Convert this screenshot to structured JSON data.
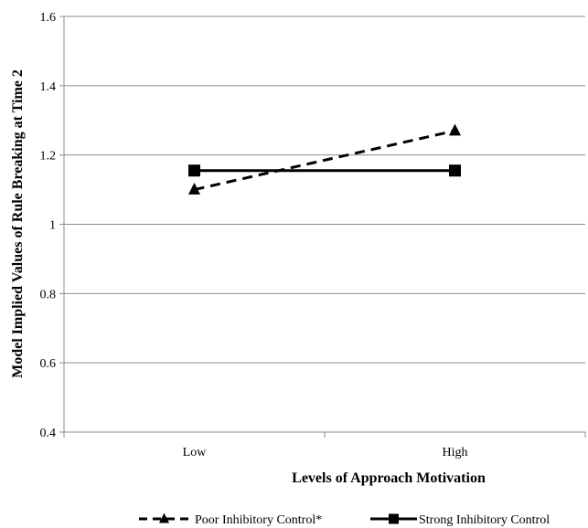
{
  "chart_data": {
    "type": "line",
    "title": "",
    "xlabel": "Levels of Approach Motivation",
    "ylabel": "Model Implied Values of Rule Breaking at Time 2",
    "categories": [
      "Low",
      "High"
    ],
    "ylim": [
      0.4,
      1.6
    ],
    "yticks": [
      "0.4",
      "0.6",
      "0.8",
      "1",
      "1.2",
      "1.4",
      "1.6"
    ],
    "grid": "horizontal",
    "legend_position": "bottom",
    "series": [
      {
        "name": "Poor Inhibitory Control*",
        "values": [
          1.1,
          1.27
        ],
        "line_style": "dashed",
        "marker": "triangle",
        "color": "#000000"
      },
      {
        "name": "Strong Inhibitory Control",
        "values": [
          1.155,
          1.155
        ],
        "line_style": "solid",
        "marker": "square",
        "color": "#000000"
      }
    ]
  }
}
